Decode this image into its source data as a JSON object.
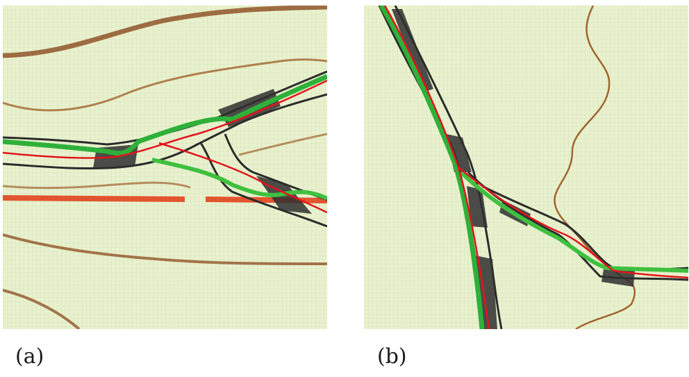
{
  "panels": [
    {
      "caption": "(a)"
    },
    {
      "caption": "(b)"
    }
  ],
  "colors": {
    "map_background": "#e9f2cf",
    "contour_line": "#9a5a2a",
    "road_casing": "#2b2b2b",
    "road_fill": "#3a3a3a",
    "dashed_boundary": "#e2552e",
    "extracted_centerline": "#e3141b",
    "ground_truth": "#2fb03a"
  }
}
